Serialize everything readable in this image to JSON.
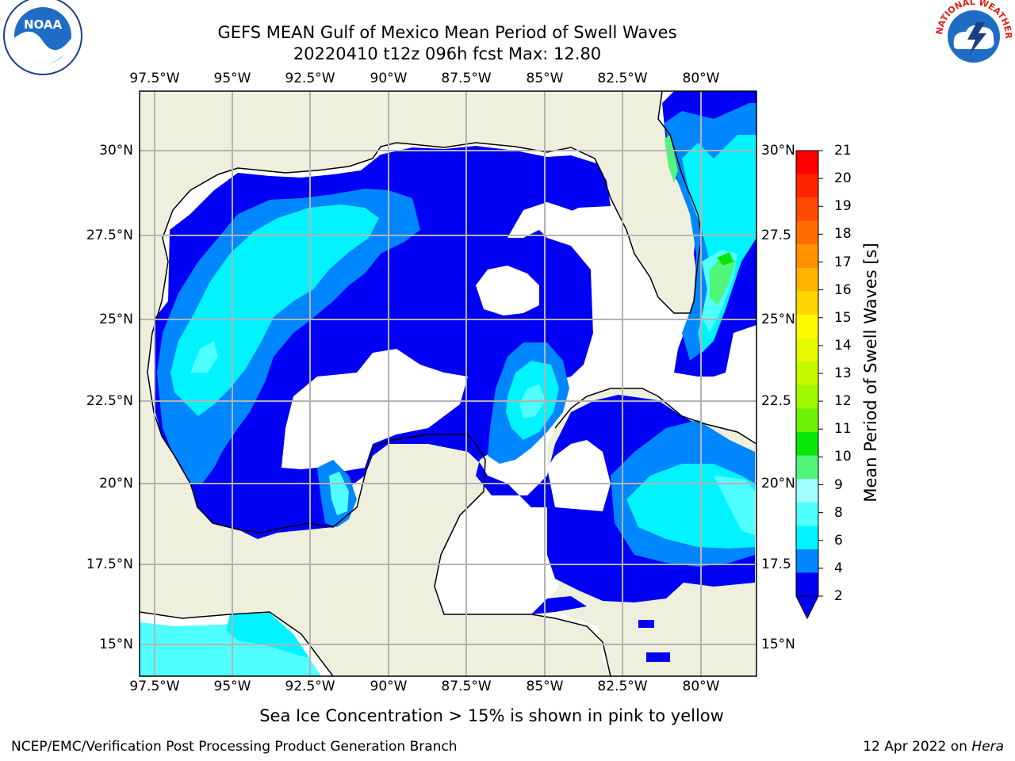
{
  "title_line1": "GEFS MEAN Gulf of Mexico Mean Period of Swell Waves",
  "title_line2": "20220410 t12z 096h fcst   Max: 12.80",
  "lon_ticks": [
    "97.5°W",
    "95°W",
    "92.5°W",
    "90°W",
    "87.5°W",
    "85°W",
    "82.5°W",
    "80°W"
  ],
  "lat_ticks_left": [
    "30°N",
    "27.5°N",
    "25°N",
    "22.5°N",
    "20°N",
    "17.5°N",
    "15°N"
  ],
  "lat_ticks_right": [
    "30°N",
    "27.5",
    "25°N",
    "22.5",
    "20°N",
    "17.5",
    "15°N"
  ],
  "colorbar": {
    "label": "Mean Period of Swell Waves [s]",
    "ticks": [
      "21",
      "20",
      "19",
      "18",
      "17",
      "16",
      "15",
      "14",
      "13",
      "12",
      "11",
      "10",
      "9",
      "8",
      "6",
      "4",
      "2"
    ],
    "colors": [
      "#fe0000",
      "#ff2400",
      "#fe4a00",
      "#ff6c00",
      "#ff9100",
      "#ffb400",
      "#fed600",
      "#fffa00",
      "#e5f900",
      "#c5f900",
      "#9ff700",
      "#6ff20a",
      "#0ae60a",
      "#50f57a",
      "#a0ffff",
      "#50ffff",
      "#00f3ff",
      "#0086ff",
      "#0000f5"
    ]
  },
  "note": "Sea Ice Concentration > 15% is shown in pink to yellow",
  "footer_left": "NCEP/EMC/Verification Post Processing Product Generation Branch",
  "footer_right_date": "12 Apr 2022 on",
  "footer_right_host": "Hera",
  "colors": {
    "land": "#efefdd",
    "wave_blue": "#0000f5",
    "wave_mid": "#0086ff",
    "wave_cyan": "#00f3ff",
    "wave_light": "#50ffff",
    "wave_pale": "#a0ffff",
    "wave_green": "#50f57a"
  },
  "logos": {
    "noaa": "NOAA",
    "nws": "NATIONAL WEATHER SERVICE"
  }
}
